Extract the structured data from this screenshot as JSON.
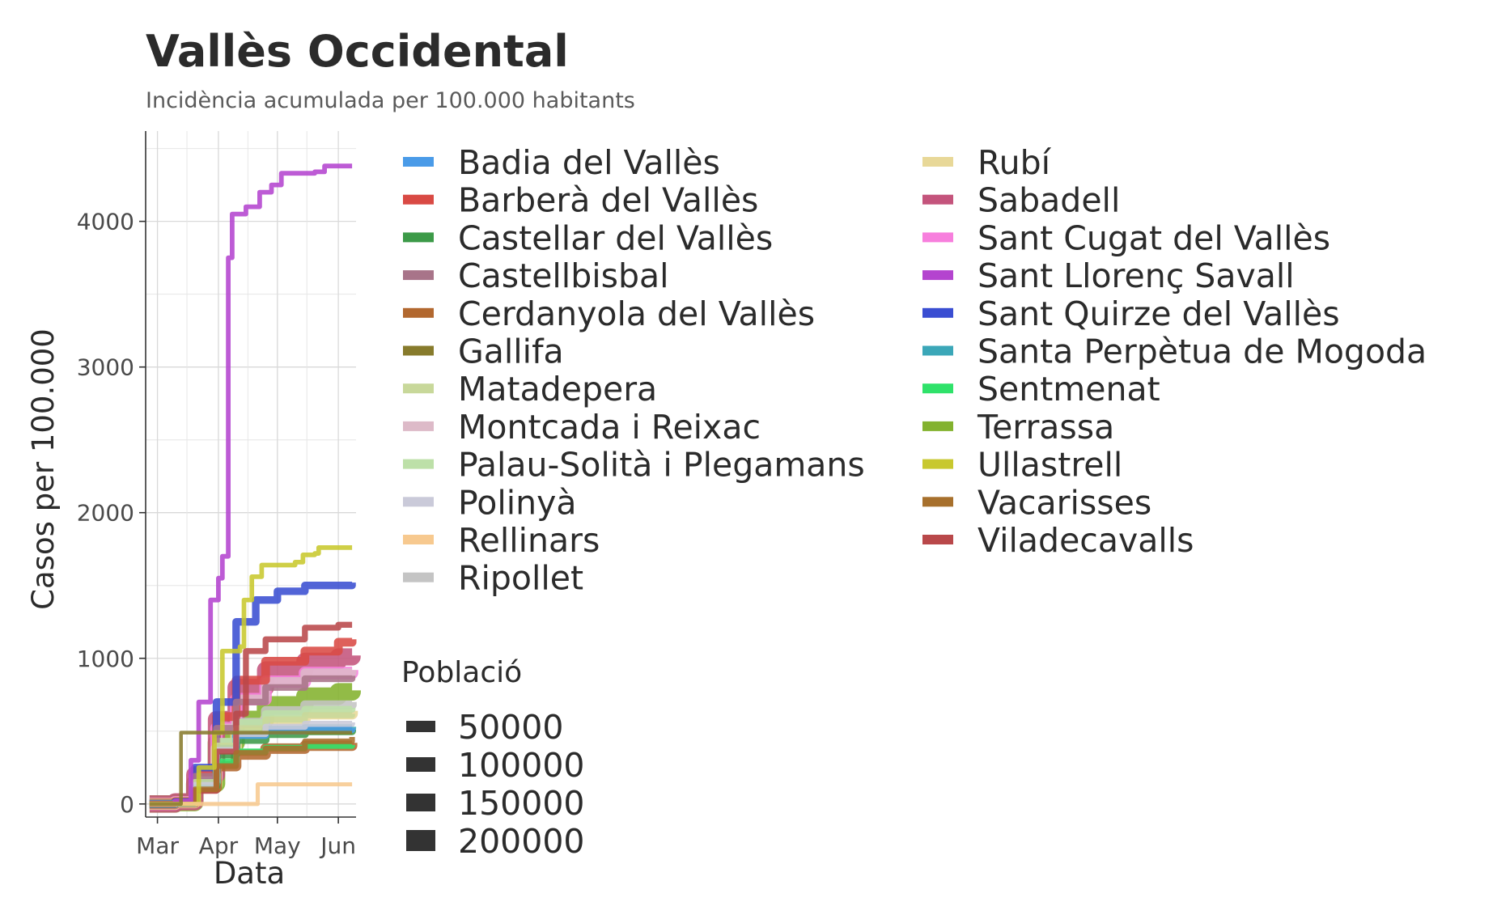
{
  "chart_data": {
    "type": "line",
    "title": "Vallès Occidental",
    "subtitle": "Incidència acumulada per 100.000 habitants",
    "xlabel": "Data",
    "ylabel": "Casos per 100.000",
    "x_ticks": [
      "Mar",
      "Apr",
      "May",
      "Jun"
    ],
    "x_tick_dates": [
      "2020-03-01",
      "2020-04-01",
      "2020-05-01",
      "2020-06-01"
    ],
    "xlim": [
      "2020-02-24",
      "2020-06-10"
    ],
    "y_ticks": [
      0,
      1000,
      2000,
      3000,
      4000
    ],
    "ylim": [
      -90,
      4620
    ],
    "grid": true,
    "legend_title_size": "Població",
    "size_legend": [
      50000,
      100000,
      150000,
      200000
    ],
    "series": [
      {
        "name": "Badia del Vallès",
        "color": "#4A9BE8",
        "population": 13000,
        "points": [
          [
            "2020-02-26",
            0
          ],
          [
            "2020-03-10",
            10
          ],
          [
            "2020-03-20",
            150
          ],
          [
            "2020-03-31",
            380
          ],
          [
            "2020-04-10",
            470
          ],
          [
            "2020-04-25",
            500
          ],
          [
            "2020-05-15",
            510
          ],
          [
            "2020-06-08",
            520
          ]
        ]
      },
      {
        "name": "Barberà del Vallès",
        "color": "#D94A44",
        "population": 33000,
        "points": [
          [
            "2020-02-26",
            0
          ],
          [
            "2020-03-10",
            15
          ],
          [
            "2020-03-20",
            220
          ],
          [
            "2020-03-31",
            600
          ],
          [
            "2020-04-10",
            850
          ],
          [
            "2020-04-25",
            980
          ],
          [
            "2020-05-15",
            1050
          ],
          [
            "2020-06-01",
            1110
          ],
          [
            "2020-06-08",
            1130
          ]
        ]
      },
      {
        "name": "Castellar del Vallès",
        "color": "#3C9A48",
        "population": 24000,
        "points": [
          [
            "2020-02-26",
            0
          ],
          [
            "2020-03-10",
            10
          ],
          [
            "2020-03-20",
            120
          ],
          [
            "2020-03-31",
            340
          ],
          [
            "2020-04-10",
            440
          ],
          [
            "2020-04-25",
            480
          ],
          [
            "2020-05-15",
            500
          ],
          [
            "2020-06-08",
            510
          ]
        ]
      },
      {
        "name": "Castellbisbal",
        "color": "#A87489",
        "population": 12500,
        "points": [
          [
            "2020-02-26",
            0
          ],
          [
            "2020-03-10",
            10
          ],
          [
            "2020-03-20",
            190
          ],
          [
            "2020-03-31",
            520
          ],
          [
            "2020-04-10",
            700
          ],
          [
            "2020-04-25",
            800
          ],
          [
            "2020-05-15",
            860
          ],
          [
            "2020-06-08",
            880
          ]
        ]
      },
      {
        "name": "Cerdanyola del Vallès",
        "color": "#B2682F",
        "population": 57000,
        "points": [
          [
            "2020-02-26",
            0
          ],
          [
            "2020-03-10",
            10
          ],
          [
            "2020-03-20",
            110
          ],
          [
            "2020-03-31",
            260
          ],
          [
            "2020-04-10",
            340
          ],
          [
            "2020-04-25",
            380
          ],
          [
            "2020-05-15",
            400
          ],
          [
            "2020-06-08",
            420
          ]
        ]
      },
      {
        "name": "Gallifa",
        "color": "#877B2C",
        "population": 200,
        "points": [
          [
            "2020-02-26",
            0
          ],
          [
            "2020-03-12",
            0
          ],
          [
            "2020-03-13",
            490
          ],
          [
            "2020-04-15",
            490
          ],
          [
            "2020-06-08",
            490
          ]
        ]
      },
      {
        "name": "Matadepera",
        "color": "#C8D89A",
        "population": 9000,
        "points": [
          [
            "2020-02-26",
            0
          ],
          [
            "2020-03-10",
            10
          ],
          [
            "2020-03-20",
            150
          ],
          [
            "2020-03-31",
            400
          ],
          [
            "2020-04-10",
            520
          ],
          [
            "2020-04-25",
            580
          ],
          [
            "2020-05-15",
            610
          ],
          [
            "2020-06-08",
            620
          ]
        ]
      },
      {
        "name": "Montcada i Reixac",
        "color": "#DDBAC8",
        "population": 36000,
        "points": [
          [
            "2020-02-26",
            0
          ],
          [
            "2020-03-10",
            10
          ],
          [
            "2020-03-20",
            180
          ],
          [
            "2020-03-31",
            520
          ],
          [
            "2020-04-10",
            720
          ],
          [
            "2020-04-25",
            840
          ],
          [
            "2020-05-15",
            900
          ],
          [
            "2020-06-08",
            920
          ]
        ]
      },
      {
        "name": "Palau-Solità i Plegamans",
        "color": "#BDE0A8",
        "population": 14700,
        "points": [
          [
            "2020-02-26",
            0
          ],
          [
            "2020-03-10",
            10
          ],
          [
            "2020-03-20",
            150
          ],
          [
            "2020-03-31",
            430
          ],
          [
            "2020-04-10",
            560
          ],
          [
            "2020-04-25",
            620
          ],
          [
            "2020-05-15",
            650
          ],
          [
            "2020-06-08",
            660
          ]
        ]
      },
      {
        "name": "Polinyà",
        "color": "#CACAD9",
        "population": 8500,
        "points": [
          [
            "2020-02-26",
            0
          ],
          [
            "2020-03-10",
            10
          ],
          [
            "2020-03-20",
            130
          ],
          [
            "2020-03-31",
            370
          ],
          [
            "2020-04-10",
            480
          ],
          [
            "2020-04-25",
            530
          ],
          [
            "2020-05-15",
            550
          ],
          [
            "2020-06-08",
            560
          ]
        ]
      },
      {
        "name": "Rellinars",
        "color": "#F7C98F",
        "population": 800,
        "points": [
          [
            "2020-02-26",
            0
          ],
          [
            "2020-04-20",
            0
          ],
          [
            "2020-04-21",
            135
          ],
          [
            "2020-06-08",
            135
          ]
        ]
      },
      {
        "name": "Ripollet",
        "color": "#C4C4C4",
        "population": 39000,
        "points": [
          [
            "2020-02-26",
            0
          ],
          [
            "2020-03-10",
            10
          ],
          [
            "2020-03-20",
            150
          ],
          [
            "2020-03-31",
            420
          ],
          [
            "2020-04-10",
            560
          ],
          [
            "2020-04-25",
            640
          ],
          [
            "2020-05-15",
            680
          ],
          [
            "2020-06-08",
            700
          ]
        ]
      },
      {
        "name": "Rubí",
        "color": "#E8D898",
        "population": 76000,
        "points": [
          [
            "2020-02-26",
            0
          ],
          [
            "2020-03-10",
            10
          ],
          [
            "2020-03-20",
            130
          ],
          [
            "2020-03-31",
            380
          ],
          [
            "2020-04-10",
            500
          ],
          [
            "2020-04-25",
            580
          ],
          [
            "2020-05-15",
            620
          ],
          [
            "2020-06-08",
            640
          ]
        ]
      },
      {
        "name": "Sabadell",
        "color": "#C4547C",
        "population": 213000,
        "points": [
          [
            "2020-02-26",
            0
          ],
          [
            "2020-03-10",
            15
          ],
          [
            "2020-03-20",
            200
          ],
          [
            "2020-03-31",
            580
          ],
          [
            "2020-04-10",
            800
          ],
          [
            "2020-04-25",
            920
          ],
          [
            "2020-05-15",
            980
          ],
          [
            "2020-06-01",
            1010
          ],
          [
            "2020-06-08",
            1020
          ]
        ]
      },
      {
        "name": "Sant Cugat del Vallès",
        "color": "#F77FDD",
        "population": 91000,
        "points": [
          [
            "2020-02-26",
            0
          ],
          [
            "2020-03-10",
            12
          ],
          [
            "2020-03-20",
            180
          ],
          [
            "2020-03-31",
            520
          ],
          [
            "2020-04-10",
            720
          ],
          [
            "2020-04-25",
            840
          ],
          [
            "2020-05-15",
            900
          ],
          [
            "2020-06-08",
            920
          ]
        ]
      },
      {
        "name": "Sant Llorenç Savall",
        "color": "#B444CF",
        "population": 2400,
        "points": [
          [
            "2020-02-26",
            0
          ],
          [
            "2020-03-10",
            20
          ],
          [
            "2020-03-18",
            300
          ],
          [
            "2020-03-22",
            700
          ],
          [
            "2020-03-28",
            1400
          ],
          [
            "2020-04-01",
            1550
          ],
          [
            "2020-04-03",
            1700
          ],
          [
            "2020-04-06",
            3750
          ],
          [
            "2020-04-08",
            4050
          ],
          [
            "2020-04-15",
            4100
          ],
          [
            "2020-04-22",
            4200
          ],
          [
            "2020-04-28",
            4250
          ],
          [
            "2020-05-03",
            4330
          ],
          [
            "2020-05-20",
            4340
          ],
          [
            "2020-05-25",
            4380
          ],
          [
            "2020-06-08",
            4380
          ]
        ]
      },
      {
        "name": "Sant Quirze del Vallès",
        "color": "#3A4ED2",
        "population": 19900,
        "points": [
          [
            "2020-02-26",
            0
          ],
          [
            "2020-03-10",
            15
          ],
          [
            "2020-03-20",
            250
          ],
          [
            "2020-03-31",
            700
          ],
          [
            "2020-04-10",
            1250
          ],
          [
            "2020-04-20",
            1400
          ],
          [
            "2020-05-01",
            1460
          ],
          [
            "2020-05-15",
            1500
          ],
          [
            "2020-06-08",
            1520
          ]
        ]
      },
      {
        "name": "Santa Perpètua de Mogoda",
        "color": "#3BA7B8",
        "population": 25700,
        "points": [
          [
            "2020-02-26",
            0
          ],
          [
            "2020-03-10",
            10
          ],
          [
            "2020-03-20",
            140
          ],
          [
            "2020-03-31",
            380
          ],
          [
            "2020-04-10",
            480
          ],
          [
            "2020-04-25",
            510
          ],
          [
            "2020-05-15",
            520
          ],
          [
            "2020-06-08",
            530
          ]
        ]
      },
      {
        "name": "Sentmenat",
        "color": "#2FE26A",
        "population": 9000,
        "points": [
          [
            "2020-02-26",
            0
          ],
          [
            "2020-03-10",
            10
          ],
          [
            "2020-03-20",
            110
          ],
          [
            "2020-03-31",
            290
          ],
          [
            "2020-04-10",
            360
          ],
          [
            "2020-04-25",
            385
          ],
          [
            "2020-05-15",
            400
          ],
          [
            "2020-06-08",
            405
          ]
        ]
      },
      {
        "name": "Terrassa",
        "color": "#83B22E",
        "population": 223000,
        "points": [
          [
            "2020-02-26",
            0
          ],
          [
            "2020-03-10",
            10
          ],
          [
            "2020-03-20",
            140
          ],
          [
            "2020-03-31",
            420
          ],
          [
            "2020-04-10",
            580
          ],
          [
            "2020-04-25",
            680
          ],
          [
            "2020-05-15",
            740
          ],
          [
            "2020-06-01",
            770
          ],
          [
            "2020-06-08",
            780
          ]
        ]
      },
      {
        "name": "Ullastrell",
        "color": "#C8C82E",
        "population": 2000,
        "points": [
          [
            "2020-02-26",
            0
          ],
          [
            "2020-03-20",
            0
          ],
          [
            "2020-03-22",
            250
          ],
          [
            "2020-03-30",
            490
          ],
          [
            "2020-04-03",
            1050
          ],
          [
            "2020-04-12",
            1080
          ],
          [
            "2020-04-14",
            1400
          ],
          [
            "2020-04-18",
            1560
          ],
          [
            "2020-04-23",
            1640
          ],
          [
            "2020-05-10",
            1660
          ],
          [
            "2020-05-14",
            1710
          ],
          [
            "2020-05-20",
            1720
          ],
          [
            "2020-05-22",
            1760
          ],
          [
            "2020-06-08",
            1760
          ]
        ]
      },
      {
        "name": "Vacarisses",
        "color": "#A7702C",
        "population": 6500,
        "points": [
          [
            "2020-02-26",
            0
          ],
          [
            "2020-03-10",
            10
          ],
          [
            "2020-03-20",
            100
          ],
          [
            "2020-03-31",
            260
          ],
          [
            "2020-04-10",
            350
          ],
          [
            "2020-04-25",
            380
          ],
          [
            "2020-05-15",
            430
          ],
          [
            "2020-06-08",
            460
          ]
        ]
      },
      {
        "name": "Viladecavalls",
        "color": "#B9484A",
        "population": 7500,
        "points": [
          [
            "2020-02-26",
            0
          ],
          [
            "2020-03-10",
            10
          ],
          [
            "2020-03-20",
            90
          ],
          [
            "2020-03-31",
            360
          ],
          [
            "2020-04-10",
            620
          ],
          [
            "2020-04-15",
            1050
          ],
          [
            "2020-04-25",
            1130
          ],
          [
            "2020-05-15",
            1210
          ],
          [
            "2020-06-01",
            1230
          ],
          [
            "2020-06-08",
            1230
          ]
        ]
      }
    ]
  }
}
